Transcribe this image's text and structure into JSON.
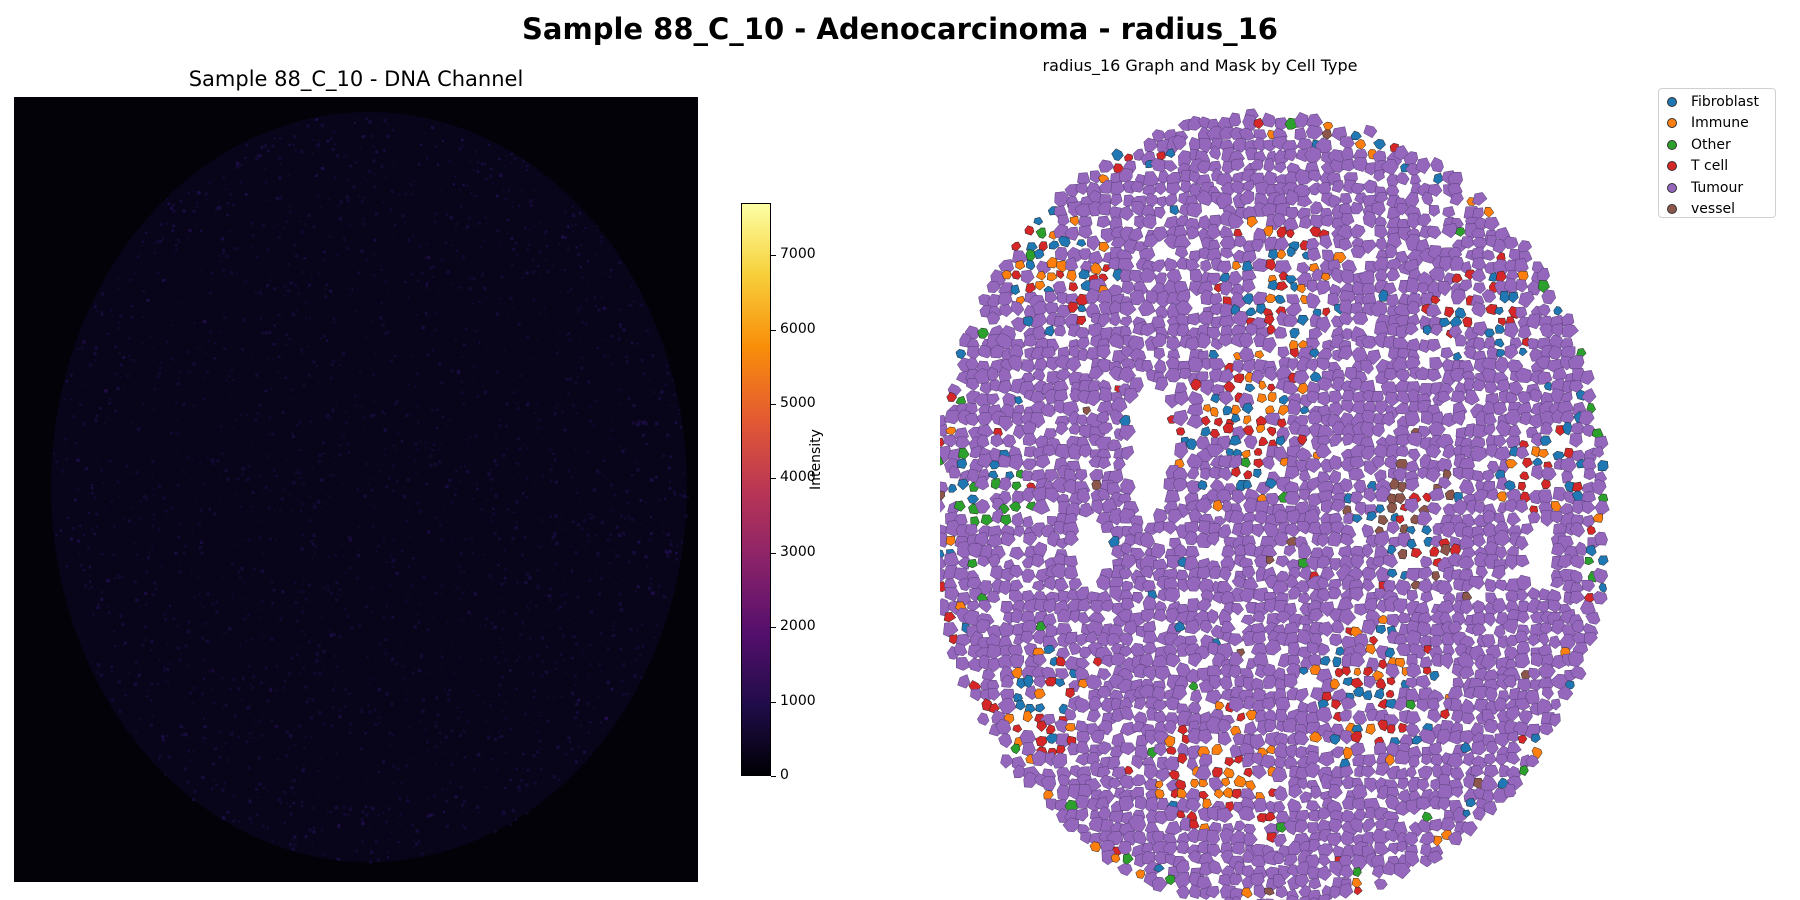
{
  "suptitle": "Sample 88_C_10 - Adenocarcinoma - radius_16",
  "left_panel": {
    "title": "Sample 88_C_10 - DNA Channel",
    "colorbar": {
      "label": "Intensity",
      "ticks": [
        "0",
        "1000",
        "2000",
        "3000",
        "4000",
        "5000",
        "6000",
        "7000"
      ],
      "colormap": "inferno",
      "range": [
        0,
        7700
      ]
    }
  },
  "chart_data": [
    {
      "type": "heatmap",
      "title": "Sample 88_C_10 - DNA Channel",
      "colorbar_label": "Intensity",
      "colorbar_range": [
        0,
        7700
      ],
      "colorbar_ticks": [
        0,
        1000,
        2000,
        3000,
        4000,
        5000,
        6000,
        7000
      ],
      "colormap": "inferno"
    },
    {
      "type": "scatter",
      "title": "radius_16 Graph and Mask by Cell Type",
      "legend_position": "top-right",
      "legend": [
        {
          "name": "Fibroblast",
          "color": "#1f77b4"
        },
        {
          "name": "Immune",
          "color": "#ff7f0e"
        },
        {
          "name": "Other",
          "color": "#2ca02c"
        },
        {
          "name": "T cell",
          "color": "#d62728"
        },
        {
          "name": "Tumour",
          "color": "#9467bd"
        },
        {
          "name": "vessel",
          "color": "#8c564b"
        }
      ]
    }
  ],
  "right_panel": {
    "title": "radius_16 Graph and Mask by Cell Type",
    "legend": [
      {
        "name": "Fibroblast",
        "color": "#1f77b4"
      },
      {
        "name": "Immune",
        "color": "#ff7f0e"
      },
      {
        "name": "Other",
        "color": "#2ca02c"
      },
      {
        "name": "T cell",
        "color": "#d62728"
      },
      {
        "name": "Tumour",
        "color": "#9467bd"
      },
      {
        "name": "vessel",
        "color": "#8c564b"
      }
    ]
  }
}
